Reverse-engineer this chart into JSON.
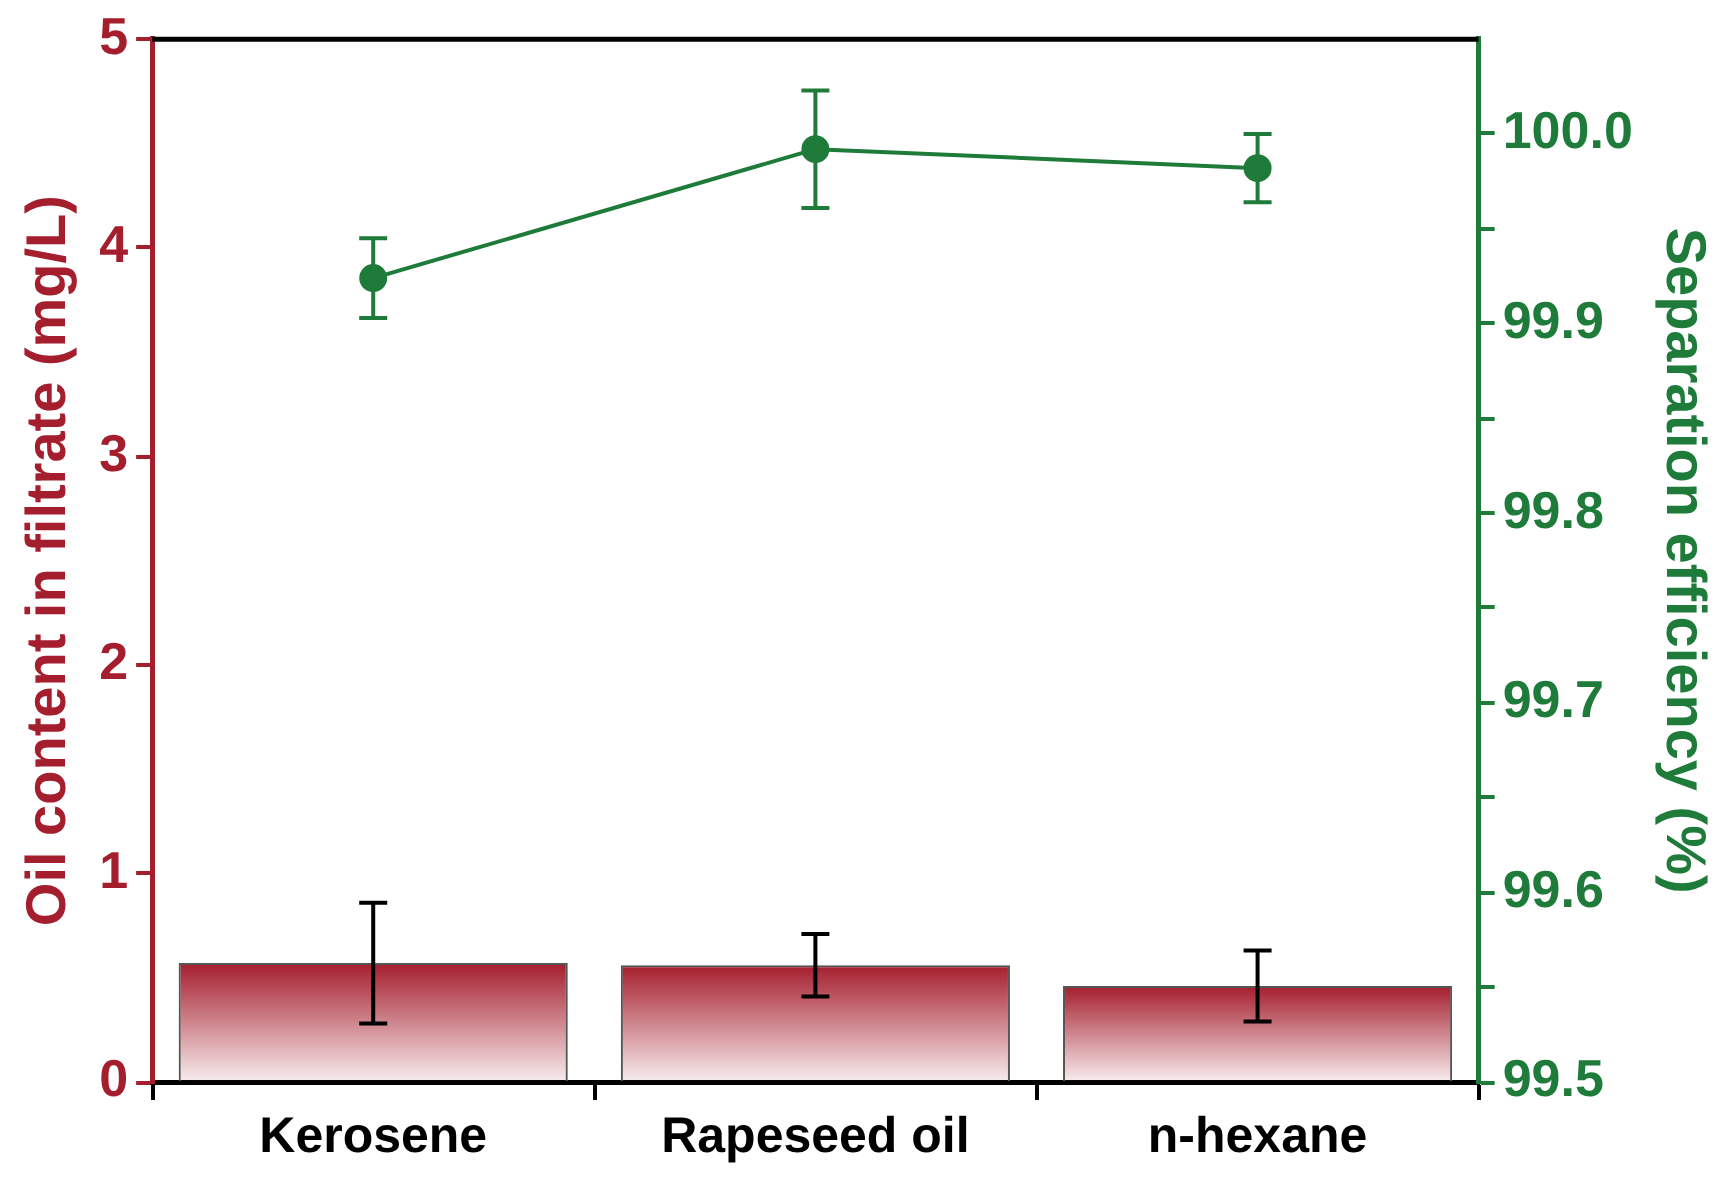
{
  "chart_data": {
    "type": "bar",
    "categories": [
      "Kerosene",
      "Rapeseed oil",
      "n-hexane"
    ],
    "ylabel": "Oil content in filtrate (mg/L)",
    "y2label": "Separation efficiency (%)",
    "ylim": [
      0,
      5
    ],
    "yticks": [
      0,
      1,
      2,
      3,
      4,
      5
    ],
    "y2lim": [
      99.5,
      100.05
    ],
    "y2ticks": [
      {
        "value": 99.5,
        "label": "99.5"
      },
      {
        "value": 99.55,
        "label": null
      },
      {
        "value": 99.6,
        "label": "99.6"
      },
      {
        "value": 99.65,
        "label": null
      },
      {
        "value": 99.7,
        "label": "99.7"
      },
      {
        "value": 99.75,
        "label": null
      },
      {
        "value": 99.8,
        "label": "99.8"
      },
      {
        "value": 99.85,
        "label": null
      },
      {
        "value": 99.9,
        "label": "99.9"
      },
      {
        "value": 99.95,
        "label": null
      },
      {
        "value": 100.0,
        "label": "100.0"
      }
    ],
    "grid": false,
    "legend": false,
    "series": [
      {
        "color": "#a51e2d",
        "values": [
          0.57,
          0.56,
          0.46
        ],
        "errors": [
          0.29,
          0.15,
          0.17
        ]
      },
      {
        "type": "line",
        "axis": "y2",
        "color": "#1e7b3a",
        "marker": "circle",
        "line_style": "solid",
        "values": [
          99.924,
          99.992,
          99.982
        ],
        "errors": [
          0.021,
          0.031,
          0.018
        ]
      }
    ]
  }
}
